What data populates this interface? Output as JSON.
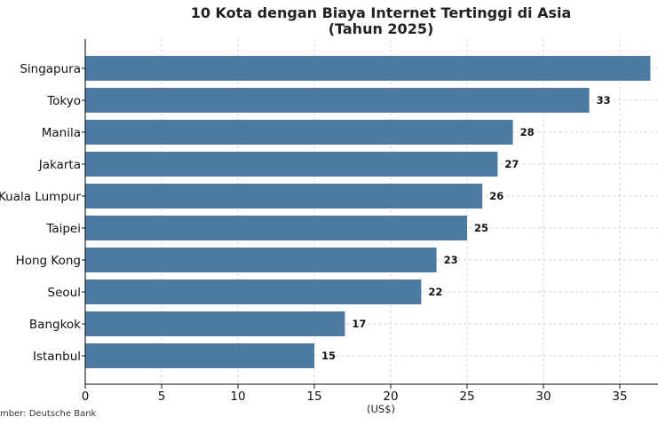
{
  "chart_data": {
    "type": "bar",
    "orientation": "horizontal",
    "title_lines": [
      "10 Kota dengan Biaya Internet Tertinggi di Asia",
      "(Tahun 2025)"
    ],
    "xlabel": "(US$)",
    "source": "mber: Deutsche Bank",
    "categories": [
      "Singapura",
      "Tokyo",
      "Manila",
      "Jakarta",
      "Kuala Lumpur",
      "Taipei",
      "Hong Kong",
      "Seoul",
      "Bangkok",
      "Istanbul"
    ],
    "values": [
      37,
      33,
      28,
      27,
      26,
      25,
      23,
      22,
      17,
      15
    ],
    "value_labels": [
      "",
      "33",
      "28",
      "27",
      "26",
      "25",
      "23",
      "22",
      "17",
      "15"
    ],
    "xlim": [
      0,
      37.5
    ],
    "xticks": [
      0,
      5,
      10,
      15,
      20,
      25,
      30,
      35
    ],
    "grid": true,
    "bar_color": "#4d7aa3"
  }
}
